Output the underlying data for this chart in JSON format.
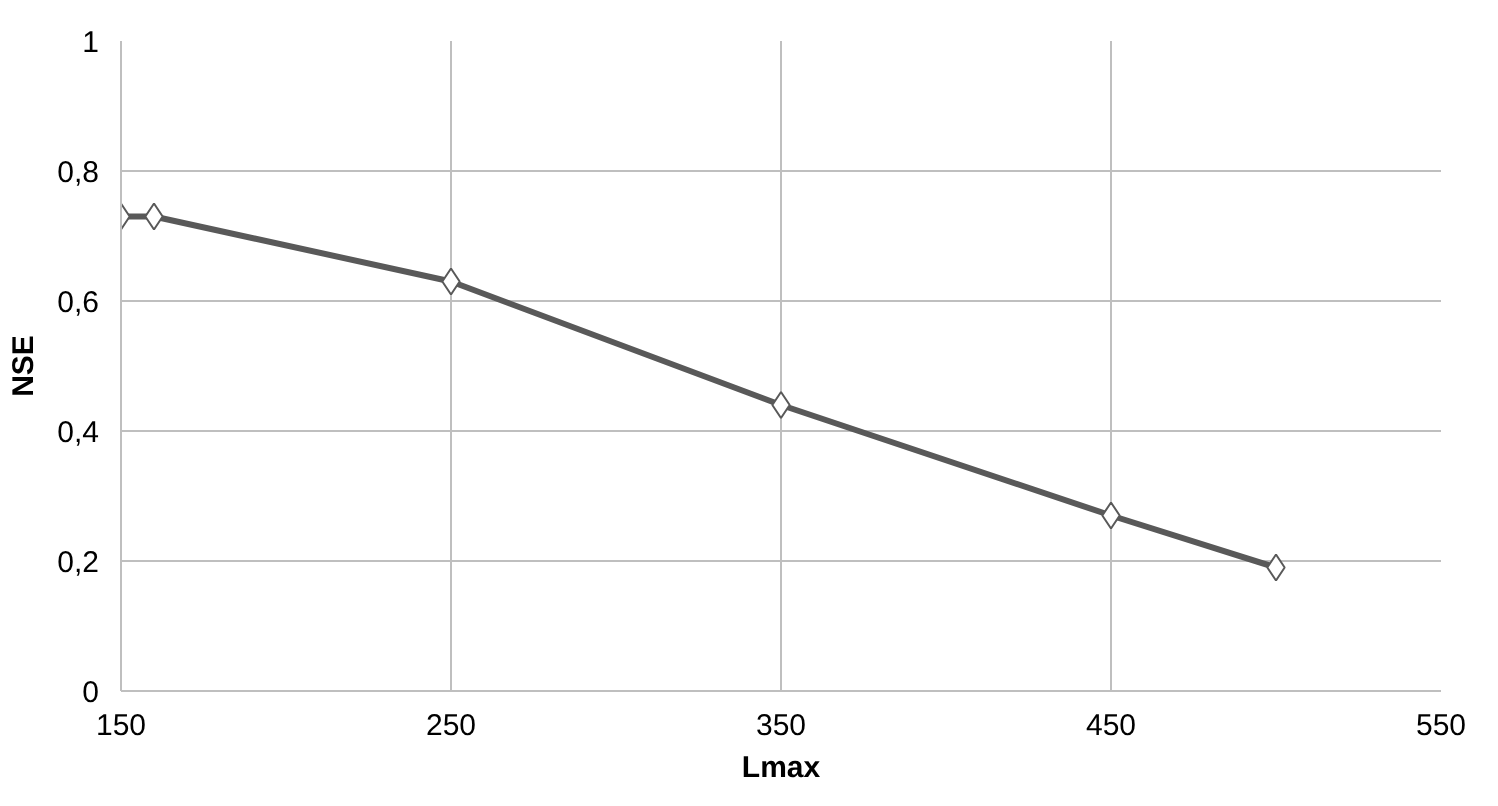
{
  "chart_data": {
    "type": "line",
    "xlabel": "Lmax",
    "ylabel": "NSE",
    "x": [
      150,
      160,
      250,
      350,
      450,
      500
    ],
    "series": [
      {
        "color": "#595959",
        "values": [
          0.73,
          0.73,
          0.63,
          0.44,
          0.27,
          0.19
        ]
      }
    ],
    "xlim": [
      150,
      550
    ],
    "xticks": [
      150,
      250,
      350,
      450,
      550
    ],
    "ylim": [
      0,
      1
    ],
    "yticks": [
      0,
      {
        "value": 0.2,
        "label": "0,2"
      },
      {
        "value": 0.4,
        "label": "0,4"
      },
      {
        "value": 0.6,
        "label": "0,6"
      },
      {
        "value": 0.8,
        "label": "0,8"
      },
      1
    ],
    "grid": true,
    "marker": "diamond",
    "line_style": "solid"
  }
}
